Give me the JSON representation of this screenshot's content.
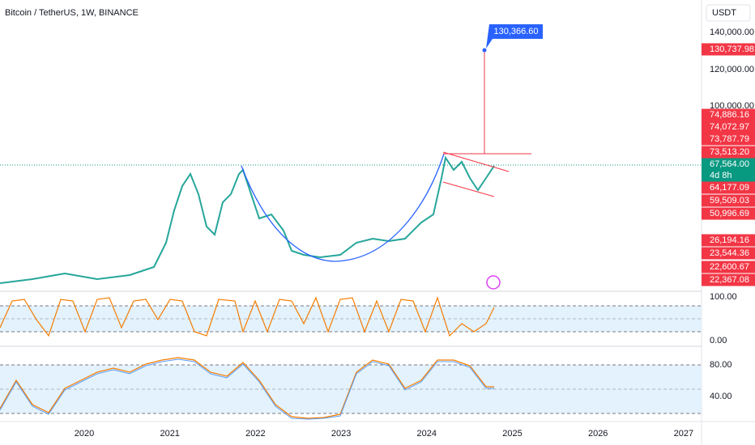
{
  "header": {
    "title": "Bitcoin / TetherUS, 1W, BINANCE",
    "currency": "USDT"
  },
  "annotation": "130,366.60",
  "price_labels": [
    "140,000.00",
    "120,000.00",
    "100,000.00"
  ],
  "price_tags": [
    "130,737.98",
    "74,886.16",
    "74,072.97",
    "73,787.79",
    "73,513.20",
    "67,564.00",
    "64,177.09",
    "59,509.03",
    "50,996.69",
    "26,194.16",
    "23,544.36",
    "22,600.67",
    "22,367.08"
  ],
  "countdown": "4d 8h",
  "indicator_1_labels": [
    "100.00",
    "0.00"
  ],
  "indicator_2_labels": [
    "80.00",
    "40.00"
  ],
  "time_labels": [
    "2020",
    "2021",
    "2022",
    "2023",
    "2024",
    "2025",
    "2026",
    "2027"
  ]
}
